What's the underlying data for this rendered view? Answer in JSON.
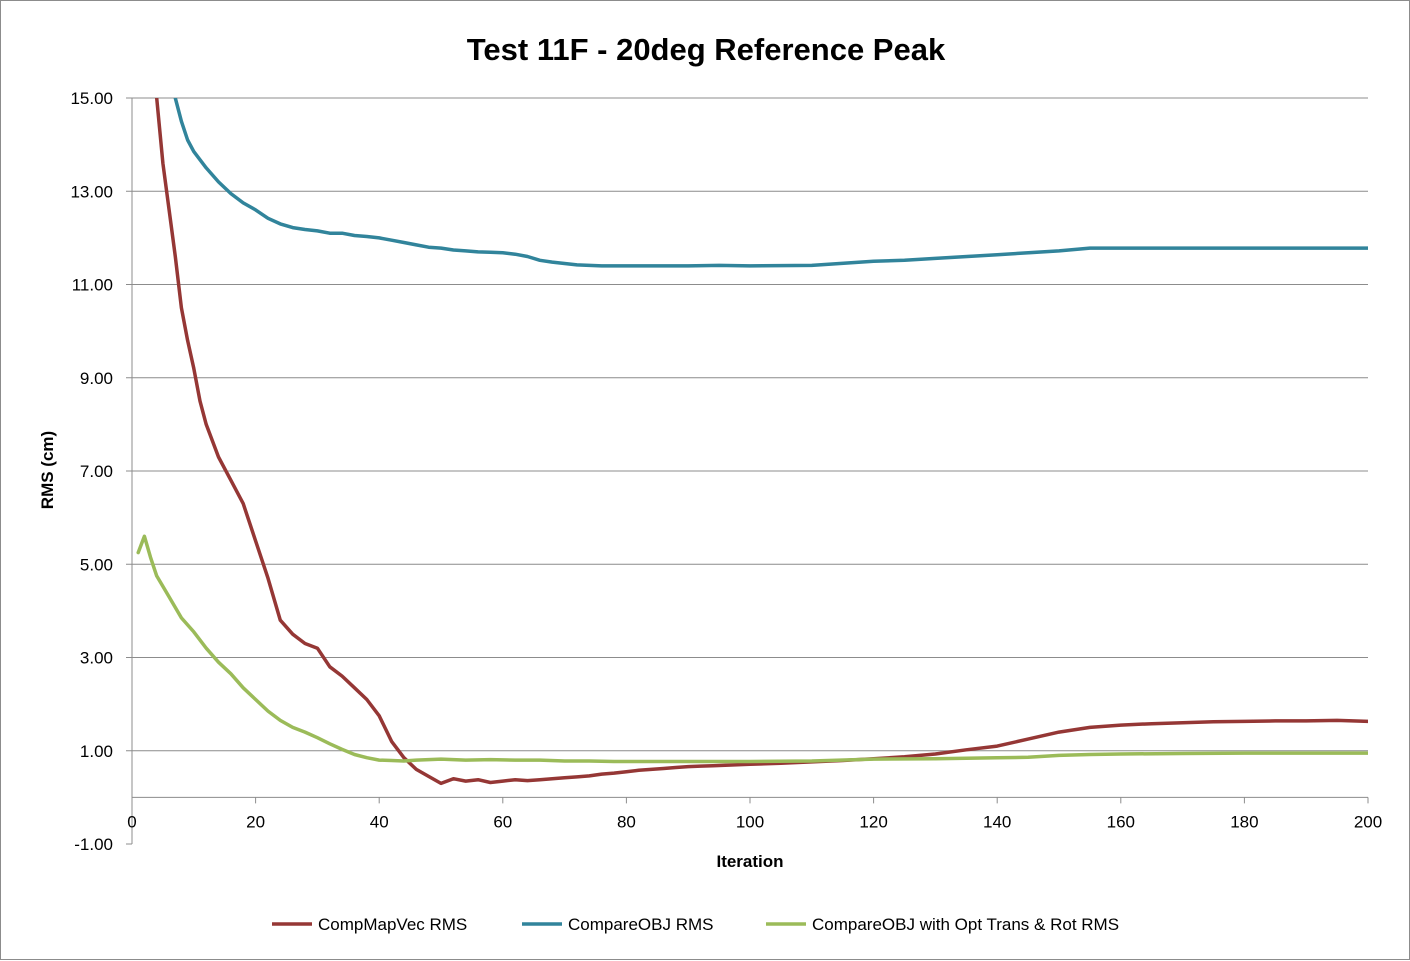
{
  "chart_data": {
    "type": "line",
    "title": "Test 11F - 20deg Reference Peak",
    "xlabel": "Iteration",
    "ylabel": "RMS (cm)",
    "xlim": [
      0,
      200
    ],
    "ylim": [
      -1,
      15
    ],
    "xticks": [
      0,
      20,
      40,
      60,
      80,
      100,
      120,
      140,
      160,
      180,
      200
    ],
    "xtick_labels": [
      "0",
      "20",
      "40",
      "60",
      "80",
      "100",
      "120",
      "140",
      "160",
      "180",
      "200"
    ],
    "yticks": [
      -1,
      1,
      3,
      5,
      7,
      9,
      11,
      13,
      15
    ],
    "ytick_labels": [
      "-1.00",
      "1.00",
      "3.00",
      "5.00",
      "7.00",
      "9.00",
      "11.00",
      "13.00",
      "15.00"
    ],
    "grid": "horizontal",
    "legend_position": "bottom",
    "series": [
      {
        "name": "CompMapVec RMS",
        "color": "#953735",
        "points": [
          [
            4,
            15.0
          ],
          [
            5,
            13.6
          ],
          [
            6,
            12.6
          ],
          [
            7,
            11.6
          ],
          [
            8,
            10.5
          ],
          [
            9,
            9.8
          ],
          [
            10,
            9.2
          ],
          [
            11,
            8.5
          ],
          [
            12,
            8.0
          ],
          [
            14,
            7.3
          ],
          [
            16,
            6.8
          ],
          [
            18,
            6.3
          ],
          [
            20,
            5.5
          ],
          [
            22,
            4.7
          ],
          [
            24,
            3.8
          ],
          [
            26,
            3.5
          ],
          [
            28,
            3.3
          ],
          [
            30,
            3.2
          ],
          [
            32,
            2.8
          ],
          [
            34,
            2.6
          ],
          [
            36,
            2.35
          ],
          [
            38,
            2.1
          ],
          [
            40,
            1.75
          ],
          [
            42,
            1.2
          ],
          [
            44,
            0.85
          ],
          [
            46,
            0.6
          ],
          [
            48,
            0.45
          ],
          [
            50,
            0.3
          ],
          [
            52,
            0.4
          ],
          [
            54,
            0.35
          ],
          [
            56,
            0.38
          ],
          [
            58,
            0.32
          ],
          [
            60,
            0.35
          ],
          [
            62,
            0.38
          ],
          [
            64,
            0.36
          ],
          [
            66,
            0.38
          ],
          [
            68,
            0.4
          ],
          [
            70,
            0.42
          ],
          [
            72,
            0.44
          ],
          [
            74,
            0.46
          ],
          [
            76,
            0.5
          ],
          [
            78,
            0.52
          ],
          [
            80,
            0.55
          ],
          [
            82,
            0.58
          ],
          [
            84,
            0.6
          ],
          [
            86,
            0.62
          ],
          [
            88,
            0.64
          ],
          [
            90,
            0.66
          ],
          [
            92,
            0.67
          ],
          [
            94,
            0.68
          ],
          [
            96,
            0.69
          ],
          [
            98,
            0.7
          ],
          [
            100,
            0.71
          ],
          [
            105,
            0.73
          ],
          [
            110,
            0.76
          ],
          [
            115,
            0.79
          ],
          [
            120,
            0.83
          ],
          [
            125,
            0.87
          ],
          [
            130,
            0.93
          ],
          [
            135,
            1.02
          ],
          [
            140,
            1.1
          ],
          [
            145,
            1.25
          ],
          [
            150,
            1.4
          ],
          [
            155,
            1.5
          ],
          [
            160,
            1.55
          ],
          [
            165,
            1.58
          ],
          [
            170,
            1.6
          ],
          [
            175,
            1.62
          ],
          [
            180,
            1.63
          ],
          [
            185,
            1.64
          ],
          [
            190,
            1.64
          ],
          [
            195,
            1.65
          ],
          [
            200,
            1.63
          ]
        ]
      },
      {
        "name": "CompareOBJ RMS",
        "color": "#31849b",
        "points": [
          [
            7,
            15.0
          ],
          [
            8,
            14.5
          ],
          [
            9,
            14.1
          ],
          [
            10,
            13.85
          ],
          [
            12,
            13.5
          ],
          [
            14,
            13.2
          ],
          [
            16,
            12.95
          ],
          [
            18,
            12.75
          ],
          [
            20,
            12.6
          ],
          [
            22,
            12.42
          ],
          [
            24,
            12.3
          ],
          [
            26,
            12.22
          ],
          [
            28,
            12.18
          ],
          [
            30,
            12.15
          ],
          [
            32,
            12.1
          ],
          [
            34,
            12.1
          ],
          [
            36,
            12.05
          ],
          [
            38,
            12.03
          ],
          [
            40,
            12.0
          ],
          [
            42,
            11.95
          ],
          [
            44,
            11.9
          ],
          [
            46,
            11.85
          ],
          [
            48,
            11.8
          ],
          [
            50,
            11.78
          ],
          [
            52,
            11.74
          ],
          [
            54,
            11.72
          ],
          [
            56,
            11.7
          ],
          [
            58,
            11.69
          ],
          [
            60,
            11.68
          ],
          [
            62,
            11.65
          ],
          [
            64,
            11.6
          ],
          [
            66,
            11.52
          ],
          [
            68,
            11.48
          ],
          [
            70,
            11.45
          ],
          [
            72,
            11.42
          ],
          [
            74,
            11.41
          ],
          [
            76,
            11.4
          ],
          [
            80,
            11.4
          ],
          [
            85,
            11.4
          ],
          [
            90,
            11.4
          ],
          [
            95,
            11.41
          ],
          [
            100,
            11.4
          ],
          [
            110,
            11.41
          ],
          [
            120,
            11.5
          ],
          [
            125,
            11.52
          ],
          [
            130,
            11.56
          ],
          [
            140,
            11.64
          ],
          [
            150,
            11.72
          ],
          [
            155,
            11.78
          ],
          [
            160,
            11.78
          ],
          [
            170,
            11.78
          ],
          [
            180,
            11.78
          ],
          [
            190,
            11.78
          ],
          [
            200,
            11.78
          ]
        ]
      },
      {
        "name": "CompareOBJ with Opt Trans & Rot RMS",
        "color": "#9bbb59",
        "points": [
          [
            1,
            5.25
          ],
          [
            2,
            5.6
          ],
          [
            3,
            5.15
          ],
          [
            4,
            4.75
          ],
          [
            6,
            4.3
          ],
          [
            8,
            3.85
          ],
          [
            10,
            3.55
          ],
          [
            12,
            3.2
          ],
          [
            14,
            2.9
          ],
          [
            16,
            2.65
          ],
          [
            18,
            2.35
          ],
          [
            20,
            2.1
          ],
          [
            22,
            1.85
          ],
          [
            24,
            1.65
          ],
          [
            26,
            1.5
          ],
          [
            28,
            1.4
          ],
          [
            30,
            1.28
          ],
          [
            32,
            1.15
          ],
          [
            34,
            1.03
          ],
          [
            36,
            0.92
          ],
          [
            38,
            0.85
          ],
          [
            40,
            0.8
          ],
          [
            42,
            0.79
          ],
          [
            44,
            0.78
          ],
          [
            46,
            0.8
          ],
          [
            48,
            0.81
          ],
          [
            50,
            0.82
          ],
          [
            54,
            0.8
          ],
          [
            58,
            0.81
          ],
          [
            62,
            0.8
          ],
          [
            66,
            0.8
          ],
          [
            70,
            0.78
          ],
          [
            74,
            0.78
          ],
          [
            78,
            0.77
          ],
          [
            82,
            0.77
          ],
          [
            86,
            0.77
          ],
          [
            90,
            0.77
          ],
          [
            95,
            0.77
          ],
          [
            100,
            0.77
          ],
          [
            110,
            0.78
          ],
          [
            120,
            0.82
          ],
          [
            130,
            0.83
          ],
          [
            140,
            0.85
          ],
          [
            145,
            0.86
          ],
          [
            150,
            0.9
          ],
          [
            155,
            0.92
          ],
          [
            160,
            0.93
          ],
          [
            170,
            0.94
          ],
          [
            180,
            0.95
          ],
          [
            190,
            0.95
          ],
          [
            200,
            0.95
          ]
        ]
      }
    ]
  }
}
